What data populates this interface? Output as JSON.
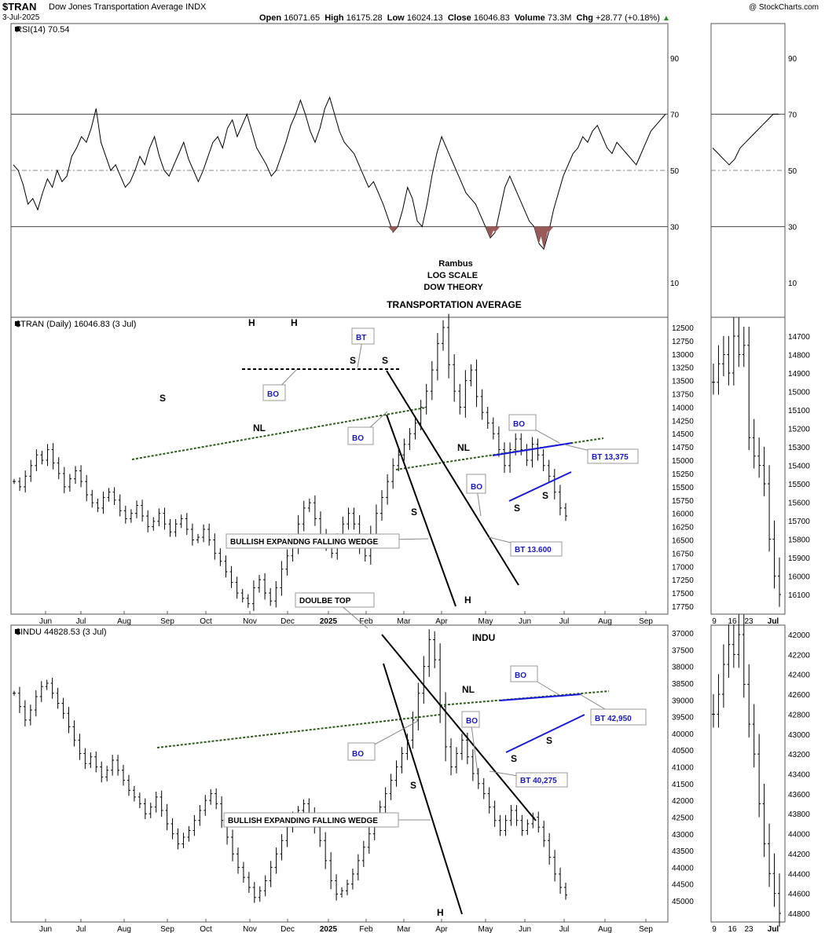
{
  "header": {
    "symbol": "$TRAN",
    "name": "Dow Jones Transportation Average",
    "exchange": "INDX",
    "date": "3-Jul-2025",
    "open_label": "Open",
    "open": "16071.65",
    "high_label": "High",
    "high": "16175.28",
    "low_label": "Low",
    "low": "16024.13",
    "close_label": "Close",
    "close": "16046.83",
    "volume_label": "Volume",
    "volume": "73.3M",
    "chg_label": "Chg",
    "chg": "+28.77 (+0.18%)",
    "logo": "@ StockCharts.com"
  },
  "chart_data": [
    {
      "type": "line",
      "panel": "rsi",
      "legend": "RSI(14) 70.54",
      "ylim": [
        0,
        100
      ],
      "yticks": [
        "90",
        "70",
        "50",
        "30",
        "10"
      ],
      "levels": [
        70,
        50,
        30
      ],
      "series": [
        {
          "values": [
            52,
            50,
            45,
            38,
            40,
            36,
            42,
            47,
            44,
            50,
            46,
            48,
            55,
            58,
            62,
            60,
            65,
            72,
            60,
            55,
            50,
            52,
            48,
            44,
            46,
            50,
            55,
            52,
            58,
            62,
            55,
            50,
            48,
            52,
            56,
            60,
            54,
            50,
            46,
            50,
            55,
            60,
            62,
            58,
            65,
            68,
            62,
            66,
            70,
            64,
            58,
            55,
            52,
            48,
            50,
            55,
            60,
            66,
            70,
            75,
            70,
            64,
            60,
            65,
            72,
            76,
            70,
            64,
            60,
            58,
            56,
            52,
            48,
            44,
            46,
            42,
            38,
            33,
            28,
            30,
            36,
            44,
            40,
            32,
            30,
            38,
            48,
            56,
            62,
            58,
            54,
            50,
            46,
            42,
            40,
            38,
            34,
            30,
            26,
            28,
            36,
            44,
            48,
            44,
            40,
            36,
            32,
            30,
            24,
            22,
            28,
            36,
            42,
            48,
            52,
            56,
            58,
            62,
            60,
            64,
            66,
            62,
            58,
            56,
            60,
            58,
            56,
            54,
            52,
            56,
            60,
            64,
            66,
            68,
            70
          ]
        },
        {
          "values": [
            58,
            56,
            54,
            52,
            54,
            58,
            60,
            62,
            64,
            66,
            68,
            70,
            70
          ]
        }
      ],
      "annotations": [
        "Rambus",
        "LOG SCALE",
        "DOW THEORY",
        "TRANSPORTATION AVERAGE"
      ]
    },
    {
      "type": "bar",
      "panel": "tran",
      "legend": "$TRAN (Daily) 16046.83 (3 Jul)",
      "ylim": [
        12500,
        17750
      ],
      "yticks": [
        "17750",
        "17500",
        "17250",
        "17000",
        "16750",
        "16500",
        "16250",
        "16000",
        "15750",
        "15500",
        "15250",
        "15000",
        "14750",
        "14500",
        "14250",
        "14000",
        "13750",
        "13500",
        "13250",
        "13000",
        "12750",
        "12500"
      ],
      "x": [
        "Jun",
        "Jul",
        "Aug",
        "Sep",
        "Oct",
        "Nov",
        "Dec",
        "2025",
        "Feb",
        "Mar",
        "Apr",
        "May",
        "Jun",
        "Jul",
        "Aug",
        "Sep"
      ],
      "closes": [
        15400,
        15500,
        15300,
        15100,
        14900,
        15000,
        14800,
        15050,
        15250,
        15500,
        15350,
        15200,
        15400,
        15650,
        15800,
        15900,
        15700,
        15600,
        15750,
        15950,
        16100,
        16000,
        15850,
        16050,
        16250,
        16150,
        16000,
        16200,
        16350,
        16200,
        16100,
        16300,
        16500,
        16450,
        16300,
        16500,
        16750,
        16900,
        17100,
        17300,
        17500,
        17600,
        17700,
        17400,
        17250,
        17500,
        17650,
        17400,
        17050,
        16800,
        16600,
        16200,
        15900,
        15800,
        16100,
        16400,
        16600,
        16750,
        16500,
        16200,
        16000,
        16200,
        16600,
        16800,
        16400,
        16000,
        15700,
        15400,
        15100,
        14900,
        14700,
        14500,
        14300,
        14000,
        13700,
        13300,
        12800,
        12500,
        13200,
        13700,
        14000,
        13500,
        13300,
        13800,
        14100,
        14300,
        14500,
        14800,
        15100,
        14800,
        14600,
        14800,
        15000,
        14700,
        14900,
        15100,
        15300,
        15600,
        15900,
        16050
      ],
      "closes_inset": [
        14950,
        14850,
        14800,
        14900,
        14700,
        14800,
        14750,
        15250,
        15350,
        15400,
        15500,
        15800,
        16000,
        16100
      ],
      "inset_yticks": [
        "16100",
        "16000",
        "15900",
        "15800",
        "15700",
        "15600",
        "15500",
        "15400",
        "15300",
        "15200",
        "15100",
        "15000",
        "14900",
        "14800",
        "14700"
      ],
      "labels": [
        "H",
        "H",
        "S",
        "S",
        "S",
        "S",
        "S",
        "S",
        "S",
        "H",
        "NL",
        "NL",
        "BT",
        "BO",
        "BO",
        "BO",
        "BO",
        "BULLISH EXPANDNG FALLING WEDGE",
        "BT 13.600",
        "BT 13,375"
      ]
    },
    {
      "type": "bar",
      "panel": "indu",
      "legend": "$INDU 44828.53 (3 Jul)",
      "ylim": [
        37000,
        45000
      ],
      "yticks": [
        "45000",
        "44500",
        "44000",
        "43500",
        "43000",
        "42500",
        "42000",
        "41500",
        "41000",
        "40500",
        "40000",
        "39500",
        "39000",
        "38500",
        "38000",
        "37500",
        "37000"
      ],
      "x": [
        "Jun",
        "Jul",
        "Aug",
        "Sep",
        "Oct",
        "Nov",
        "Dec",
        "2025",
        "Feb",
        "Mar",
        "Apr",
        "May",
        "Jun",
        "Jul",
        "Aug",
        "Sep"
      ],
      "closes": [
        38800,
        39200,
        39600,
        39300,
        38900,
        38600,
        38500,
        38800,
        39100,
        39400,
        39800,
        40200,
        40600,
        40900,
        40700,
        41000,
        41300,
        41100,
        40800,
        41100,
        41400,
        41700,
        41900,
        42100,
        42400,
        42200,
        41900,
        42300,
        42700,
        43000,
        43300,
        43100,
        42900,
        42600,
        42300,
        42000,
        41800,
        42100,
        42600,
        43100,
        43600,
        44000,
        44300,
        44600,
        44900,
        44700,
        44400,
        44000,
        43600,
        43200,
        42800,
        42500,
        42300,
        42100,
        42400,
        42800,
        43200,
        43800,
        44400,
        44800,
        44700,
        44500,
        44200,
        43800,
        43400,
        43000,
        42600,
        42200,
        41800,
        41400,
        41000,
        40600,
        40200,
        39600,
        38800,
        38000,
        37200,
        37800,
        39200,
        40400,
        41000,
        40600,
        40200,
        40700,
        41200,
        41500,
        41800,
        42200,
        42600,
        42900,
        42600,
        42300,
        42600,
        42900,
        42700,
        42500,
        42800,
        43200,
        43700,
        44200,
        44600,
        44828
      ],
      "closes_inset": [
        42800,
        42600,
        42300,
        42100,
        42200,
        42000,
        42500,
        42900,
        43200,
        43700,
        44100,
        44400,
        44600,
        44800
      ],
      "inset_yticks": [
        "44800",
        "44600",
        "44400",
        "44200",
        "44000",
        "43800",
        "43600",
        "43400",
        "43200",
        "43000",
        "42800",
        "42600",
        "42400",
        "42200",
        "42000"
      ],
      "labels": [
        "DOULBE TOP",
        "INDU",
        "NL",
        "S",
        "S",
        "S",
        "H",
        "BO",
        "BO",
        "BO",
        "BULLISH EXPANDING FALLING WEDGE",
        "BT 40,275",
        "BT 42,950"
      ]
    }
  ],
  "inset_x": [
    "9",
    "16",
    "23",
    "Jul"
  ]
}
